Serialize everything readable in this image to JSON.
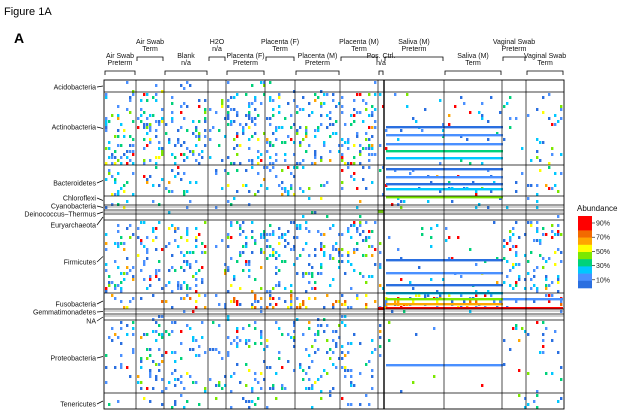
{
  "figure_title": "Figure 1A",
  "panel_letter": "A",
  "chart_data": {
    "type": "heatmap",
    "colorbar": {
      "title": "Abundance",
      "ticks": [
        "90%",
        "70%",
        "50%",
        "30%",
        "10%"
      ],
      "colors": [
        "#ff0000",
        "#f26a00",
        "#ffa500",
        "#ffff00",
        "#7ce800",
        "#00d27a",
        "#00c8ff",
        "#4a90ff",
        "#2a6fe0"
      ]
    },
    "sample_groups": [
      {
        "line1": "Air Swab",
        "line2": "Preterm",
        "row": "lower"
      },
      {
        "line1": "Air Swab",
        "line2": "Term",
        "row": "upper"
      },
      {
        "line1": "Blank",
        "line2": "n/a",
        "row": "lower"
      },
      {
        "line1": "H2O",
        "line2": "n/a",
        "row": "upper"
      },
      {
        "line1": "Placenta (F)",
        "line2": "Preterm",
        "row": "lower"
      },
      {
        "line1": "Placenta (F)",
        "line2": "Term",
        "row": "upper"
      },
      {
        "line1": "Placenta (M)",
        "line2": "Preterm",
        "row": "lower"
      },
      {
        "line1": "Placenta (M)",
        "line2": "Term",
        "row": "upper"
      },
      {
        "line1": "Pos. Ctrl.",
        "line2": "n/a",
        "row": "lower"
      },
      {
        "line1": "Saliva (M)",
        "line2": "Preterm",
        "row": "upper"
      },
      {
        "line1": "Saliva (M)",
        "line2": "Term",
        "row": "lower"
      },
      {
        "line1": "Vaginal Swab",
        "line2": "Preterm",
        "row": "upper"
      },
      {
        "line1": "Vaginal Swab",
        "line2": "Term",
        "row": "lower"
      }
    ],
    "phyla": [
      "Acidobacteria",
      "Actinobacteria",
      "Bacteroidetes",
      "Chloroflexi",
      "Cyanobacteria",
      "Deinococcus–Thermus",
      "Euryarchaeota",
      "Firmicutes",
      "Fusobacteria",
      "Gemmatimonadetes",
      "NA",
      "Proteobacteria",
      "Tenericutes"
    ],
    "xlabel": "",
    "ylabel": ""
  }
}
